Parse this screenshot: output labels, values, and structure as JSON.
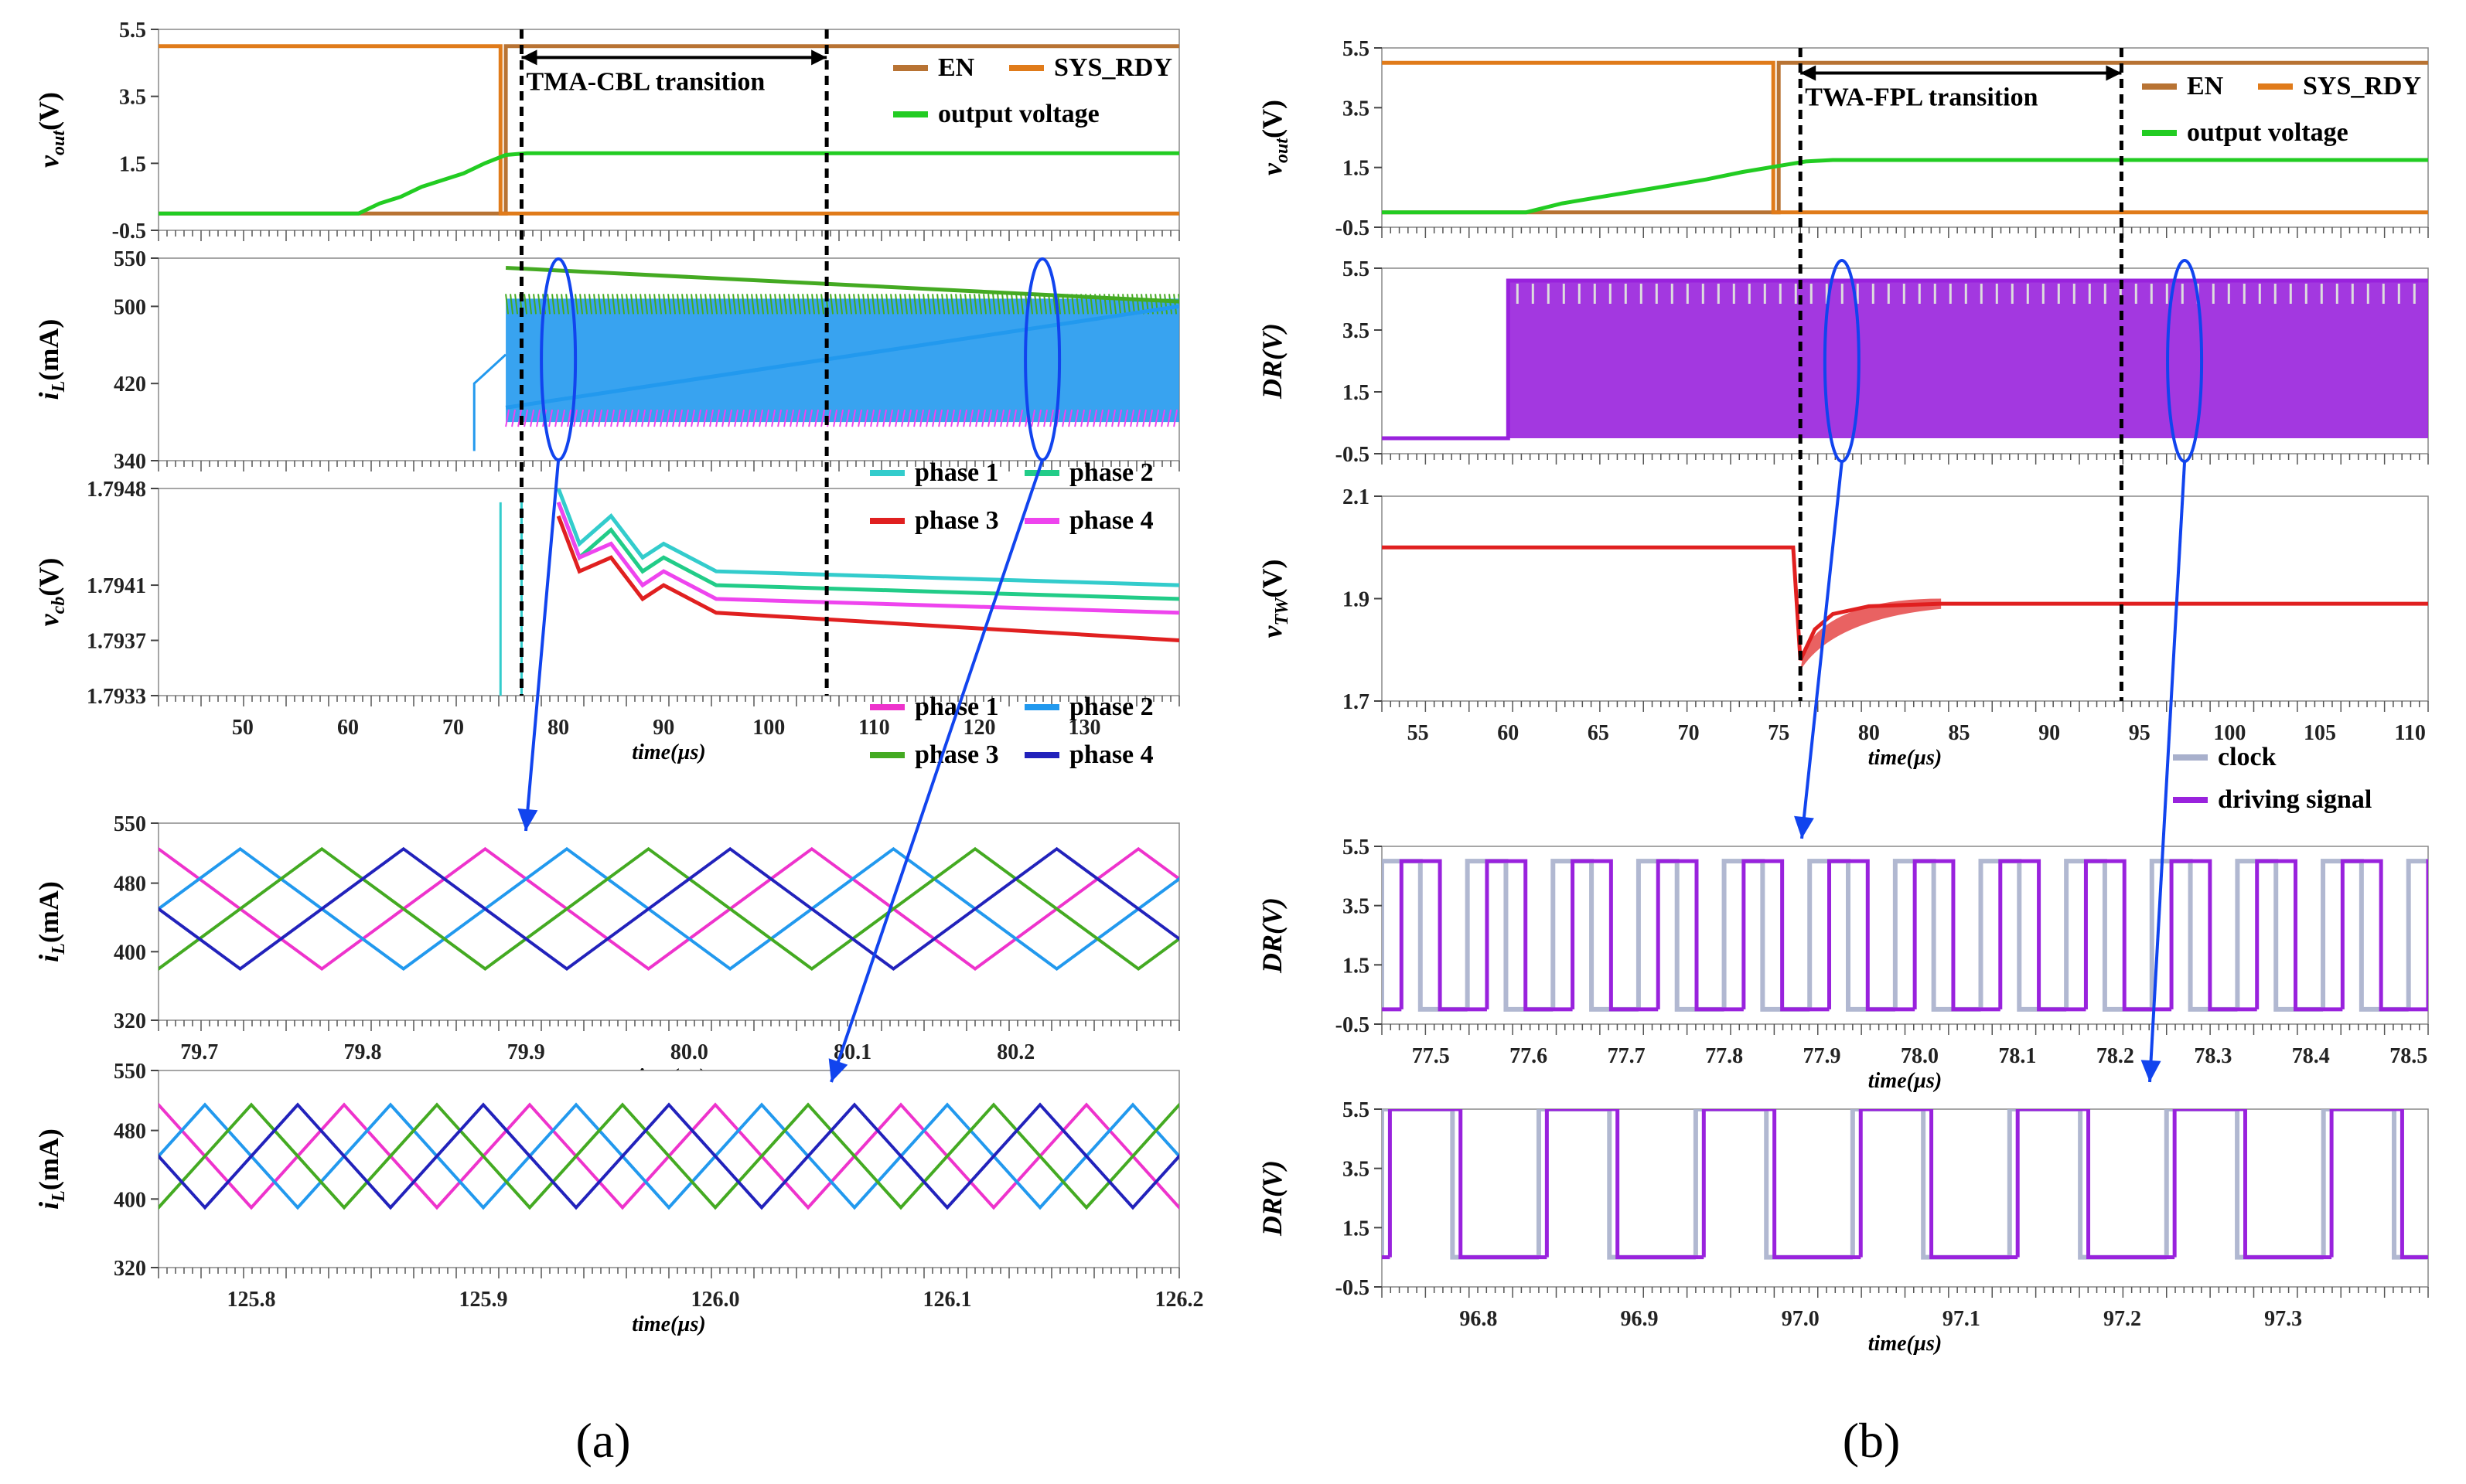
{
  "figure_labels": [
    "(a)",
    "(b)"
  ],
  "colors": {
    "EN": "#b87333",
    "SYS_RDY": "#e07b1a",
    "output_voltage": "#22cc22",
    "phase1_cyan": "#33cccc",
    "phase2_green": "#22cc88",
    "phase3_red": "#e02020",
    "phase4_magenta": "#ee44ee",
    "zoom_phase1": "#ee33cc",
    "zoom_phase2": "#2299ee",
    "zoom_phase3": "#44aa22",
    "zoom_phase4": "#2222bb",
    "clock": "#a8b0cc",
    "driving_signal": "#9922dd",
    "vtw": "#e02020",
    "marker": "#1144ee"
  },
  "chart_data": [
    {
      "id": "a-vout",
      "type": "line",
      "panel": "(a)",
      "ylabel": "vout(V)",
      "ylabel_main": "v",
      "ylabel_sub": "out",
      "ylabel_unit": "(V)",
      "yticks": [
        "5.5",
        "3.5",
        "1.5",
        "-0.5"
      ],
      "ylim": [
        -0.5,
        5.5
      ],
      "xlim": [
        42,
        139
      ],
      "legend": [
        "EN",
        "SYS_RDY",
        "output voltage"
      ],
      "annotation": "TMA-CBL transition",
      "annotation_span": [
        76.5,
        105.5
      ],
      "series": [
        {
          "name": "EN",
          "points": [
            [
              42,
              0
            ],
            [
              75,
              0
            ],
            [
              75,
              5
            ],
            [
              139,
              5
            ]
          ]
        },
        {
          "name": "SYS_RDY",
          "points": [
            [
              42,
              5
            ],
            [
              74.5,
              5
            ],
            [
              74.5,
              0
            ],
            [
              139,
              0
            ]
          ]
        },
        {
          "name": "output voltage",
          "points": [
            [
              42,
              0
            ],
            [
              61,
              0
            ],
            [
              63,
              0.3
            ],
            [
              65,
              0.5
            ],
            [
              67,
              0.8
            ],
            [
              69,
              1.0
            ],
            [
              71,
              1.2
            ],
            [
              73,
              1.5
            ],
            [
              75,
              1.75
            ],
            [
              77,
              1.8
            ],
            [
              139,
              1.8
            ]
          ]
        }
      ]
    },
    {
      "id": "a-il",
      "type": "line",
      "panel": "(a)",
      "ylabel": "iL(mA)",
      "ylabel_main": "i",
      "ylabel_sub": "L",
      "ylabel_unit": "(mA)",
      "yticks": [
        "550",
        "500",
        "420",
        "340"
      ],
      "ylim": [
        340,
        550
      ],
      "xlim": [
        42,
        139
      ],
      "band": {
        "x": [
          75,
          139
        ],
        "low": 380,
        "high": 508
      },
      "series": [
        {
          "name": "phase 1",
          "points": [
            [
              75,
              395
            ],
            [
              139,
              500
            ]
          ]
        },
        {
          "name": "phase 2",
          "points": [
            [
              75,
              540
            ],
            [
              139,
              505
            ]
          ]
        }
      ]
    },
    {
      "id": "a-vcb",
      "type": "line",
      "panel": "(a)",
      "ylabel": "vcb(V)",
      "ylabel_main": "v",
      "ylabel_sub": "cb",
      "ylabel_unit": "(V)",
      "yticks": [
        "1.7948",
        "1.7941",
        "1.7937",
        "1.7933"
      ],
      "ylim": [
        1.7933,
        1.7948
      ],
      "xlim": [
        42,
        139
      ],
      "xlabel": "time(µs)",
      "xticks": [
        "50",
        "60",
        "70",
        "80",
        "90",
        "100",
        "110",
        "120",
        "130"
      ],
      "legend": [
        "phase 1",
        "phase 2",
        "phase 3",
        "phase 4"
      ],
      "series": [
        {
          "name": "phase 1",
          "points": [
            [
              80,
              1.7948
            ],
            [
              82,
              1.7944
            ],
            [
              85,
              1.7946
            ],
            [
              88,
              1.7943
            ],
            [
              90,
              1.7944
            ],
            [
              95,
              1.7942
            ],
            [
              139,
              1.7941
            ]
          ]
        },
        {
          "name": "phase 2",
          "points": [
            [
              80,
              1.7947
            ],
            [
              82,
              1.7943
            ],
            [
              85,
              1.7945
            ],
            [
              88,
              1.7942
            ],
            [
              90,
              1.7943
            ],
            [
              95,
              1.7941
            ],
            [
              139,
              1.794
            ]
          ]
        },
        {
          "name": "phase 3",
          "points": [
            [
              80,
              1.7946
            ],
            [
              82,
              1.7942
            ],
            [
              85,
              1.7943
            ],
            [
              88,
              1.794
            ],
            [
              90,
              1.7941
            ],
            [
              95,
              1.7939
            ],
            [
              139,
              1.7937
            ]
          ]
        },
        {
          "name": "phase 4",
          "points": [
            [
              80,
              1.7947
            ],
            [
              82,
              1.7943
            ],
            [
              85,
              1.7944
            ],
            [
              88,
              1.7941
            ],
            [
              90,
              1.7942
            ],
            [
              95,
              1.794
            ],
            [
              139,
              1.7939
            ]
          ]
        }
      ]
    },
    {
      "id": "a-zoom1",
      "type": "line",
      "panel": "(a)",
      "ylabel": "iL(mA)",
      "ylabel_main": "i",
      "ylabel_sub": "L",
      "ylabel_unit": "(mA)",
      "yticks": [
        "550",
        "480",
        "400",
        "320"
      ],
      "ylim": [
        320,
        550
      ],
      "xlim": [
        79.675,
        80.3
      ],
      "xlabel": "time(µs)",
      "xticks": [
        "79.7",
        "79.8",
        "79.9",
        "80.0",
        "80.1",
        "80.2"
      ],
      "legend": [
        "phase 1",
        "phase 2",
        "phase 3",
        "phase 4"
      ],
      "period": 0.2,
      "low": 380,
      "high": 520,
      "series": [
        {
          "name": "phase 1",
          "phase": 0.0
        },
        {
          "name": "phase 2",
          "phase": 0.05
        },
        {
          "name": "phase 3",
          "phase": 0.1
        },
        {
          "name": "phase 4",
          "phase": 0.15
        }
      ]
    },
    {
      "id": "a-zoom2",
      "type": "line",
      "panel": "(a)",
      "ylabel": "iL(mA)",
      "ylabel_main": "i",
      "ylabel_sub": "L",
      "ylabel_unit": "(mA)",
      "yticks": [
        "550",
        "480",
        "400",
        "320"
      ],
      "ylim": [
        320,
        550
      ],
      "xlim": [
        125.76,
        126.2
      ],
      "xlabel": "time(µs)",
      "xticks": [
        "125.8",
        "125.9",
        "126.0",
        "126.1",
        "126.2"
      ],
      "period": 0.08,
      "low": 390,
      "high": 510,
      "series": [
        {
          "name": "phase 1",
          "phase": 0.0
        },
        {
          "name": "phase 2",
          "phase": 0.02
        },
        {
          "name": "phase 3",
          "phase": 0.04
        },
        {
          "name": "phase 4",
          "phase": 0.06
        }
      ]
    },
    {
      "id": "b-vout",
      "type": "line",
      "panel": "(b)",
      "ylabel": "vout(V)",
      "ylabel_main": "v",
      "ylabel_sub": "out",
      "ylabel_unit": "(V)",
      "yticks": [
        "5.5",
        "3.5",
        "1.5",
        "-0.5"
      ],
      "ylim": [
        -0.5,
        5.5
      ],
      "xlim": [
        53,
        111
      ],
      "legend": [
        "EN",
        "SYS_RDY",
        "output voltage"
      ],
      "annotation": "TWA-FPL transition",
      "annotation_span": [
        76.2,
        94
      ],
      "series": [
        {
          "name": "EN",
          "points": [
            [
              53,
              0
            ],
            [
              75,
              0
            ],
            [
              75,
              5
            ],
            [
              111,
              5
            ]
          ]
        },
        {
          "name": "SYS_RDY",
          "points": [
            [
              53,
              5
            ],
            [
              74.7,
              5
            ],
            [
              74.7,
              0
            ],
            [
              111,
              0
            ]
          ]
        },
        {
          "name": "output voltage",
          "points": [
            [
              53,
              0
            ],
            [
              61,
              0
            ],
            [
              63,
              0.3
            ],
            [
              65,
              0.5
            ],
            [
              67,
              0.7
            ],
            [
              69,
              0.9
            ],
            [
              71,
              1.1
            ],
            [
              73,
              1.35
            ],
            [
              75,
              1.55
            ],
            [
              76.5,
              1.7
            ],
            [
              78,
              1.75
            ],
            [
              111,
              1.75
            ]
          ]
        }
      ]
    },
    {
      "id": "b-dr",
      "type": "line",
      "panel": "(b)",
      "ylabel": "DR(V)",
      "yticks": [
        "5.5",
        "3.5",
        "1.5",
        "-0.5"
      ],
      "ylim": [
        -0.5,
        5.5
      ],
      "xlim": [
        53,
        111
      ],
      "band": {
        "x": [
          60,
          111
        ],
        "low": 0,
        "high": 5.1
      },
      "series": [
        {
          "name": "driving signal",
          "points": [
            [
              53,
              0
            ],
            [
              60,
              0
            ],
            [
              60,
              5.1
            ],
            [
              111,
              5.1
            ]
          ]
        }
      ]
    },
    {
      "id": "b-vtw",
      "type": "line",
      "panel": "(b)",
      "ylabel": "vTW(V)",
      "ylabel_main": "v",
      "ylabel_sub": "TW",
      "ylabel_unit": "(V)",
      "yticks": [
        "2.1",
        "1.9",
        "1.7"
      ],
      "ylim": [
        1.7,
        2.1
      ],
      "xlim": [
        53,
        111
      ],
      "xlabel": "time(µs)",
      "xticks": [
        "55",
        "60",
        "65",
        "70",
        "75",
        "80",
        "85",
        "90",
        "95",
        "100",
        "105",
        "110"
      ],
      "series": [
        {
          "name": "vTW",
          "points": [
            [
              53,
              2.0
            ],
            [
              75.8,
              2.0
            ],
            [
              76.2,
              1.78
            ],
            [
              77,
              1.84
            ],
            [
              78,
              1.87
            ],
            [
              80,
              1.885
            ],
            [
              84,
              1.89
            ],
            [
              111,
              1.89
            ]
          ]
        }
      ]
    },
    {
      "id": "b-zoom1",
      "type": "line",
      "panel": "(b)",
      "ylabel": "DR(V)",
      "yticks": [
        "5.5",
        "3.5",
        "1.5",
        "-0.5"
      ],
      "ylim": [
        -0.5,
        5.5
      ],
      "xlim": [
        77.45,
        78.52
      ],
      "xlabel": "time(µs)",
      "xticks": [
        "77.5",
        "77.6",
        "77.7",
        "77.8",
        "77.9",
        "78.0",
        "78.1",
        "78.2",
        "78.3",
        "78.4",
        "78.5"
      ],
      "legend": [
        "clock",
        "driving signal"
      ],
      "period": 0.0875,
      "duty": 0.45,
      "low": 0,
      "high": 5,
      "series": [
        {
          "name": "clock",
          "phase": 0.0
        },
        {
          "name": "driving signal",
          "phase": 0.02
        }
      ]
    },
    {
      "id": "b-zoom2",
      "type": "line",
      "panel": "(b)",
      "ylabel": "DR(V)",
      "yticks": [
        "5.5",
        "3.5",
        "1.5",
        "-0.5"
      ],
      "ylim": [
        -0.5,
        5.5
      ],
      "xlim": [
        96.74,
        97.39
      ],
      "xlabel": "time(µs)",
      "xticks": [
        "96.8",
        "96.9",
        "97.0",
        "97.1",
        "97.2",
        "97.3"
      ],
      "period": 0.0975,
      "duty": 0.45,
      "low": 0.5,
      "high": 5.5,
      "series": [
        {
          "name": "clock",
          "phase": 0.0
        },
        {
          "name": "driving signal",
          "phase": 0.005
        }
      ]
    }
  ]
}
